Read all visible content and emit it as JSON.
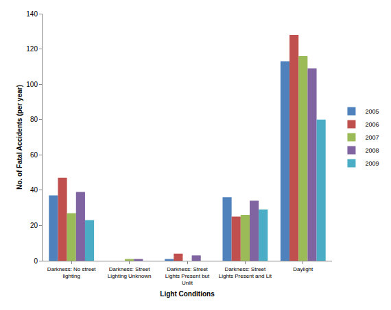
{
  "chart_data": {
    "type": "bar",
    "x_label": "Light Conditions",
    "y_label": "No. of Fatal Accidents (per year)",
    "categories": [
      "Darkness: No street lighting",
      "Darkness: Street Lighting Unknown",
      "Darkness: Street Lights Present but Unlit",
      "Darkness: Street Lights Present and Lit",
      "Daylight"
    ],
    "series": [
      {
        "name": "2005",
        "color": "#4f81bd",
        "values": [
          37,
          0,
          1,
          36,
          113
        ]
      },
      {
        "name": "2006",
        "color": "#c0504d",
        "values": [
          47,
          0,
          4,
          25,
          128
        ]
      },
      {
        "name": "2007",
        "color": "#9bbb59",
        "values": [
          27,
          1,
          0,
          26,
          116
        ]
      },
      {
        "name": "2008",
        "color": "#8064a2",
        "values": [
          39,
          1,
          3,
          34,
          109
        ]
      },
      {
        "name": "2009",
        "color": "#4bacc6",
        "values": [
          23,
          0,
          0,
          29,
          80
        ]
      }
    ],
    "ylim": [
      0,
      140
    ],
    "yticks": [
      0,
      20,
      40,
      60,
      80,
      100,
      120,
      140
    ],
    "grid": false,
    "legend": "right"
  }
}
